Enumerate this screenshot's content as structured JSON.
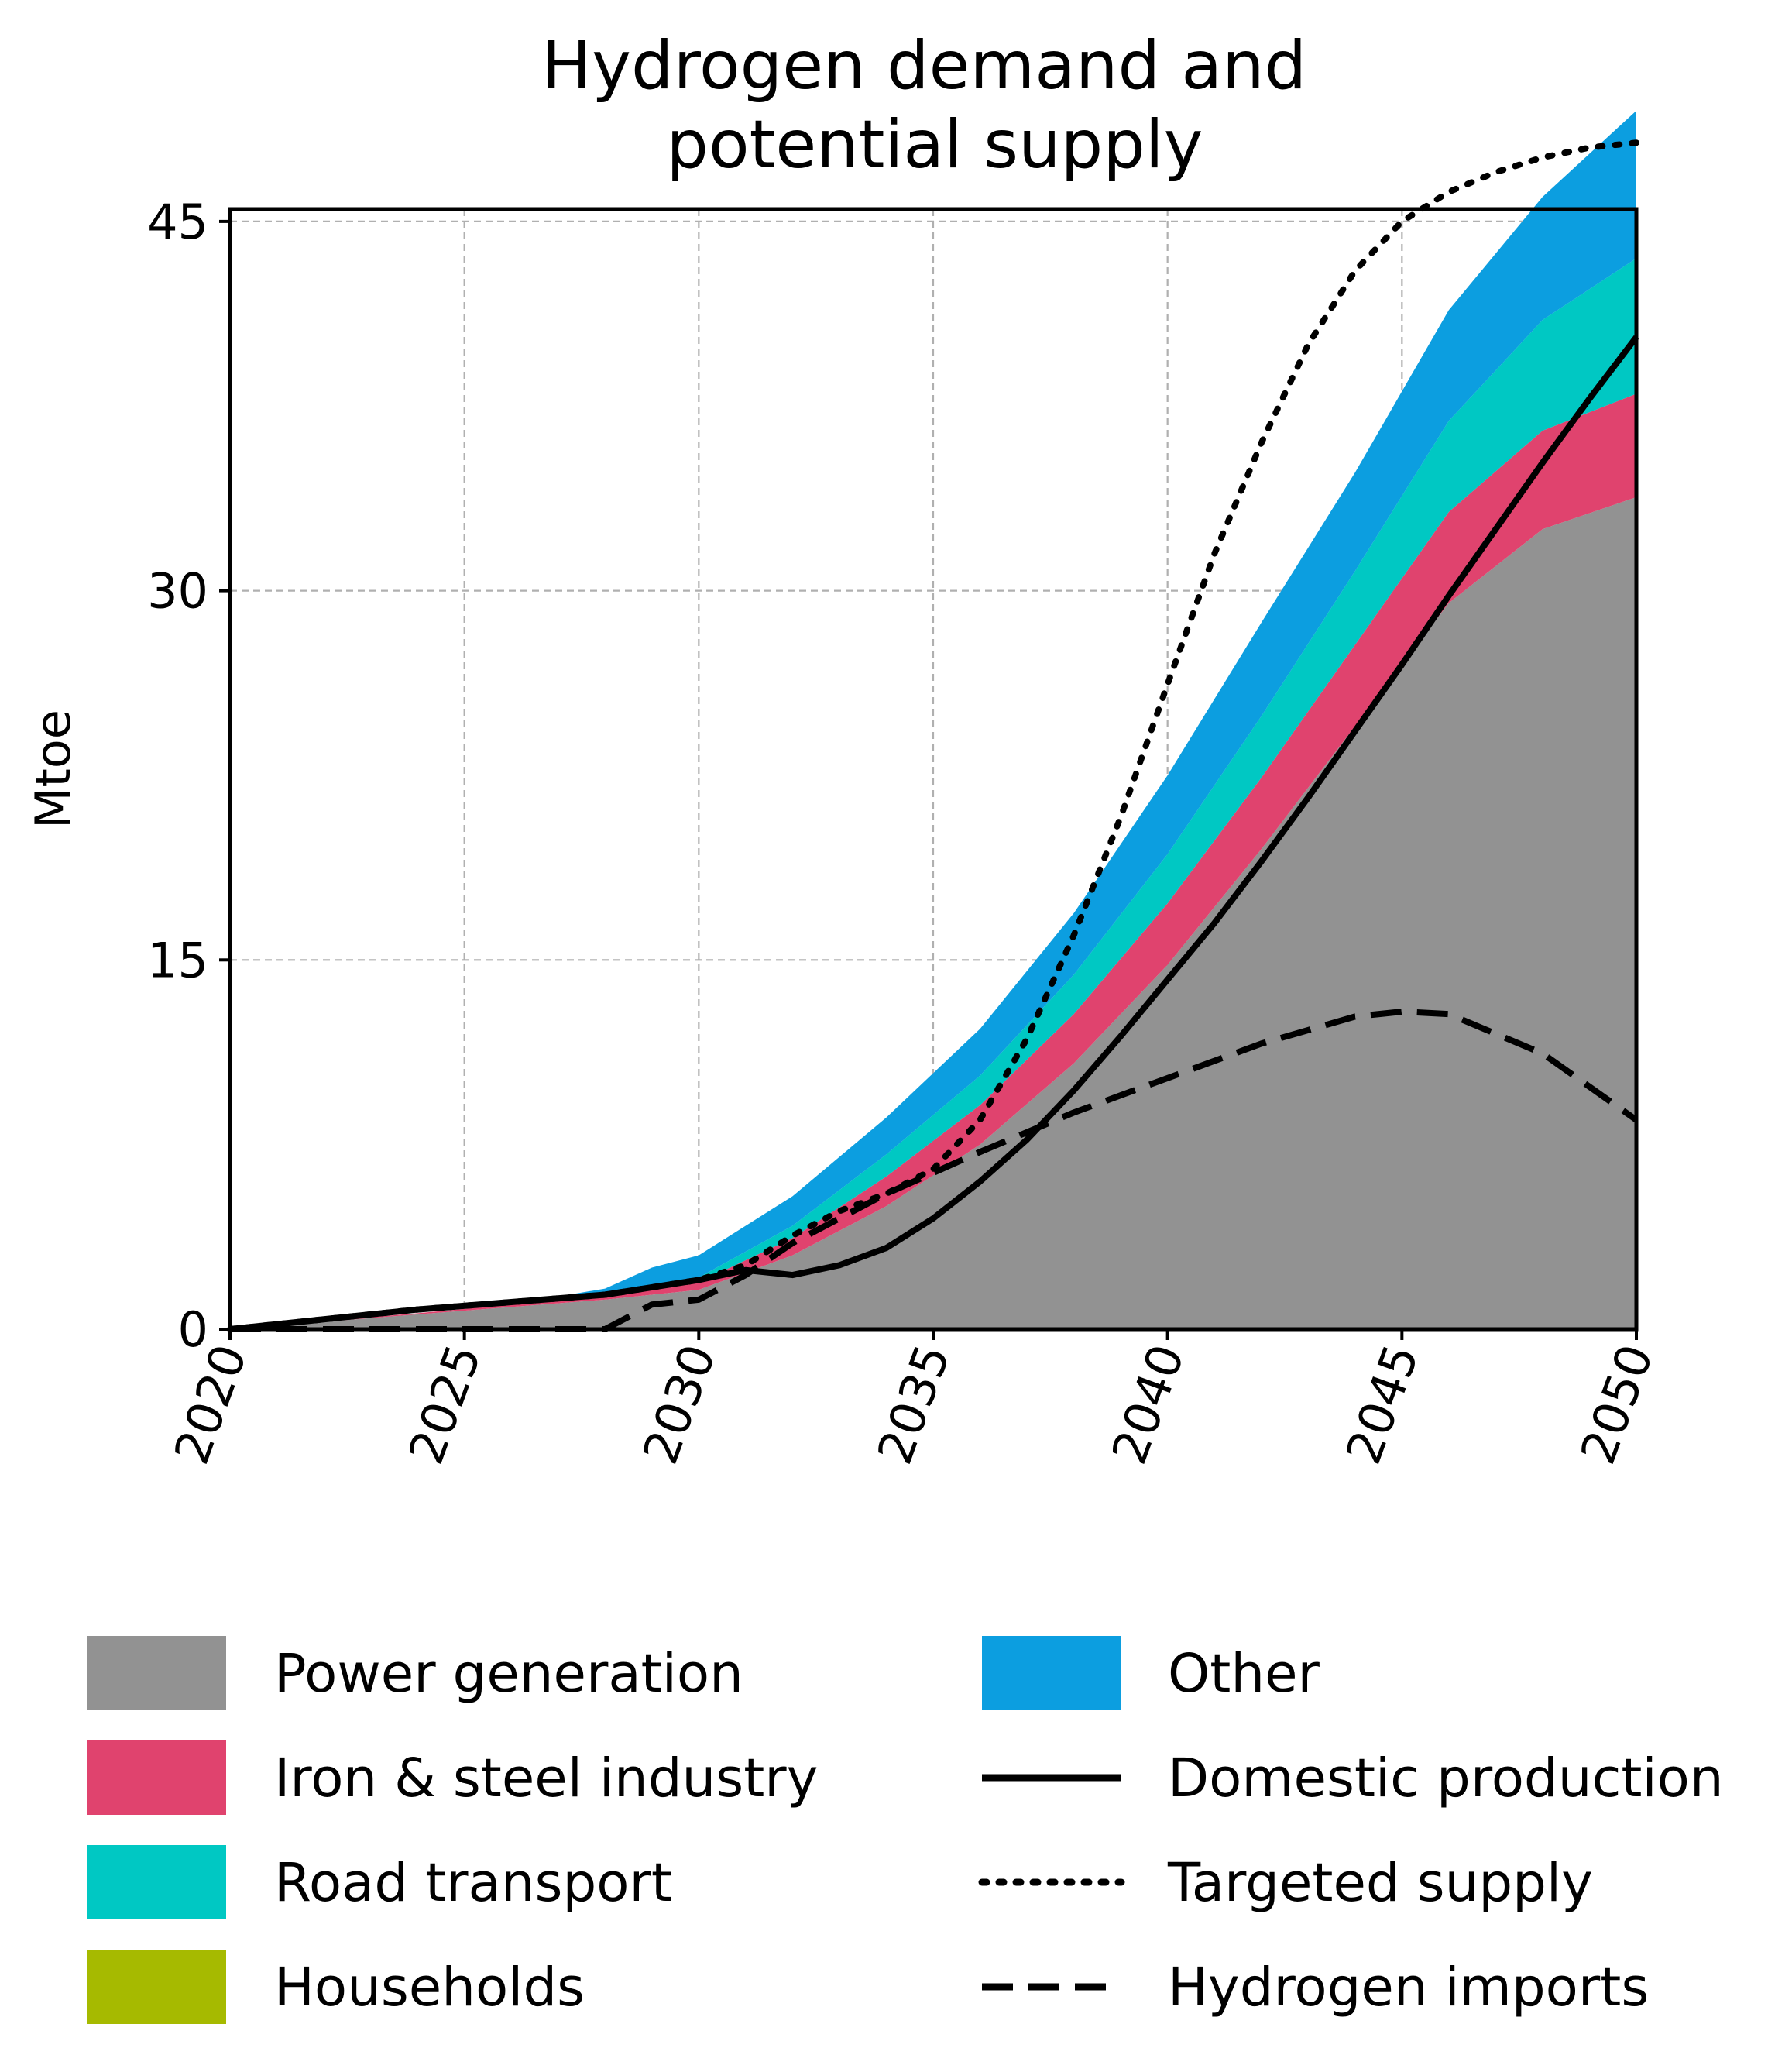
{
  "chart_data": {
    "type": "area",
    "title": "Hydrogen demand and\npotential supply",
    "xlabel": "",
    "ylabel": "Mtoe",
    "xlim": [
      2020,
      2050
    ],
    "ylim": [
      0,
      45.5
    ],
    "xticks": [
      2020,
      2025,
      2030,
      2035,
      2040,
      2045,
      2050
    ],
    "yticks": [
      0,
      15,
      30,
      45
    ],
    "grid": true,
    "legend_position": "bottom",
    "x": [
      2020,
      2022,
      2024,
      2026,
      2028,
      2029,
      2030,
      2032,
      2034,
      2036,
      2038,
      2040,
      2042,
      2044,
      2046,
      2048,
      2050
    ],
    "stacked_series": [
      {
        "name": "Power generation",
        "color": "#929292",
        "values": [
          0,
          0.3,
          0.6,
          0.9,
          1.2,
          1.4,
          1.6,
          3.0,
          5.0,
          7.5,
          10.8,
          14.8,
          19.5,
          24.5,
          29.5,
          32.5,
          33.8
        ]
      },
      {
        "name": "Iron & steel industry",
        "color": "#e0436e",
        "values": [
          0,
          0.02,
          0.05,
          0.1,
          0.15,
          0.2,
          0.3,
          0.7,
          1.2,
          1.6,
          2.0,
          2.5,
          2.9,
          3.3,
          3.7,
          4.0,
          4.2
        ]
      },
      {
        "name": "Road transport",
        "color": "#00c8c3",
        "values": [
          0,
          0,
          0,
          0,
          0.05,
          0.1,
          0.2,
          0.5,
          0.9,
          1.2,
          1.6,
          2.0,
          2.5,
          3.0,
          3.7,
          4.5,
          5.5
        ]
      },
      {
        "name": "Households",
        "color": "#a6ba00",
        "values": [
          0,
          0,
          0,
          0,
          0,
          0,
          0,
          0,
          0,
          0,
          0,
          0,
          0,
          0,
          0,
          0,
          0
        ]
      },
      {
        "name": "Other",
        "color": "#0c9ee0",
        "values": [
          0,
          0,
          0,
          0,
          0.25,
          0.8,
          0.9,
          1.2,
          1.5,
          1.9,
          2.5,
          3.2,
          3.8,
          4.0,
          4.5,
          5.0,
          6.0
        ]
      }
    ],
    "line_series": [
      {
        "name": "Domestic production",
        "style": "solid",
        "x": [
          2020,
          2022,
          2024,
          2026,
          2028,
          2030,
          2031,
          2032,
          2033,
          2034,
          2035,
          2036,
          2037,
          2038,
          2039,
          2040,
          2041,
          2042,
          2043,
          2044,
          2045,
          2046,
          2047,
          2048,
          2049,
          2050
        ],
        "values": [
          0,
          0.4,
          0.8,
          1.1,
          1.4,
          2.0,
          2.4,
          2.2,
          2.6,
          3.3,
          4.5,
          6.0,
          7.7,
          9.7,
          11.9,
          14.2,
          16.5,
          19.0,
          21.6,
          24.3,
          27.0,
          29.8,
          32.5,
          35.2,
          37.8,
          40.3
        ]
      },
      {
        "name": "Targeted supply",
        "style": "dotted",
        "x": [
          2020,
          2022,
          2024,
          2026,
          2028,
          2029,
          2030,
          2031,
          2032,
          2033,
          2034,
          2035,
          2036,
          2037,
          2038,
          2039,
          2040,
          2041,
          2042,
          2043,
          2044,
          2045,
          2046,
          2047,
          2048,
          2049,
          2050
        ],
        "values": [
          0,
          0.4,
          0.8,
          1.1,
          1.4,
          1.7,
          2.0,
          2.6,
          3.8,
          4.8,
          5.5,
          6.5,
          8.5,
          11.8,
          16.0,
          20.8,
          26.2,
          31.5,
          36.0,
          40.0,
          43.0,
          45.0,
          46.2,
          47.0,
          47.6,
          48.0,
          48.2
        ]
      },
      {
        "name": "Hydrogen imports",
        "style": "dashed",
        "x": [
          2020,
          2022,
          2024,
          2026,
          2028,
          2029,
          2030,
          2031,
          2032,
          2034,
          2036,
          2038,
          2040,
          2042,
          2044,
          2045,
          2046,
          2048,
          2050
        ],
        "values": [
          0,
          0,
          0,
          0,
          0,
          1.0,
          1.2,
          2.2,
          3.5,
          5.5,
          7.2,
          8.8,
          10.2,
          11.6,
          12.7,
          12.9,
          12.8,
          11.2,
          8.5
        ]
      }
    ]
  }
}
